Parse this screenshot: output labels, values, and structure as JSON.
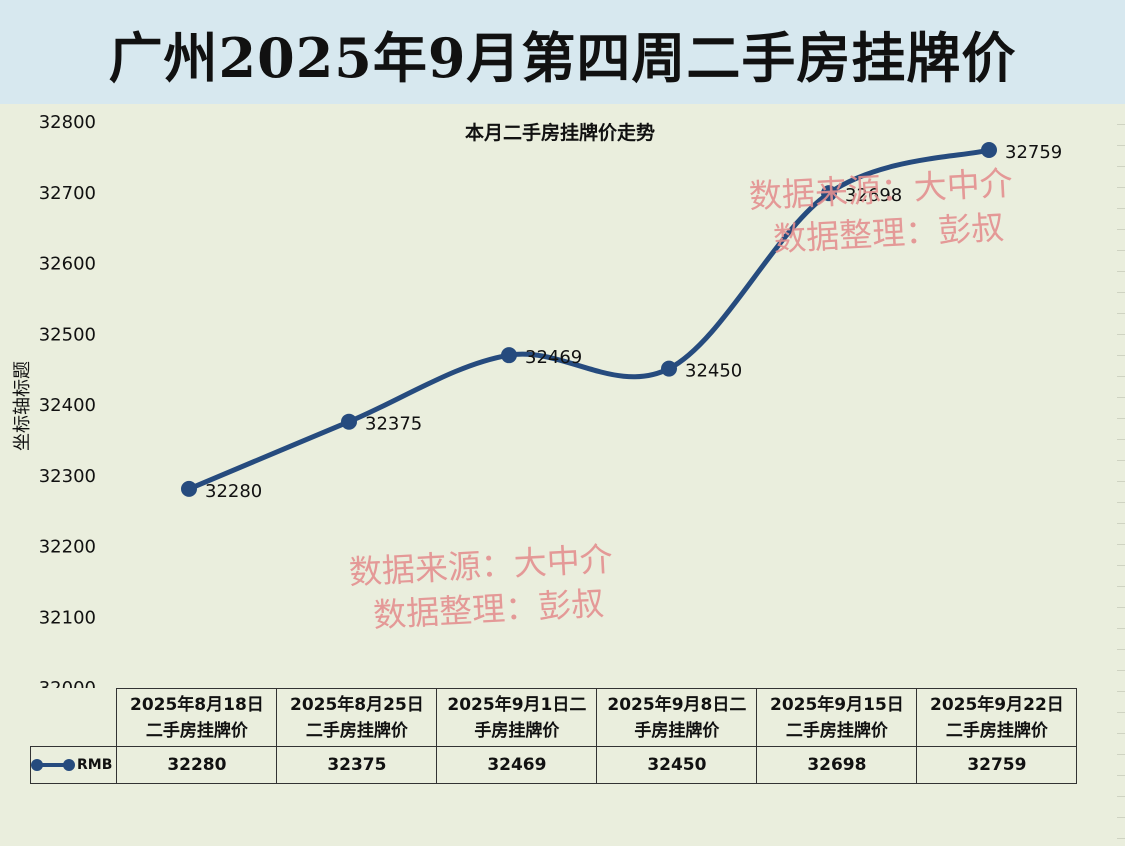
{
  "banner": {
    "title": "广州2025年9月第四周二手房挂牌价"
  },
  "watermark": {
    "line1": "数据来源：大中介",
    "line2": "数据整理：彭叔"
  },
  "chart_data": {
    "type": "line",
    "title": "本月二手房挂牌价走势",
    "ylabel": "坐标轴标题",
    "xlabel": "",
    "ylim": [
      32000,
      32800
    ],
    "yticks": [
      32000,
      32100,
      32200,
      32300,
      32400,
      32500,
      32600,
      32700,
      32800
    ],
    "categories": [
      "2025年8月18日二手房挂牌价",
      "2025年8月25日二手房挂牌价",
      "2025年9月1日二手房挂牌价",
      "2025年9月8日二手房挂牌价",
      "2025年9月15日二手房挂牌价",
      "2025年9月22日二手房挂牌价"
    ],
    "category_lines": [
      [
        "2025年8月18日",
        "二手房挂牌价"
      ],
      [
        "2025年8月25日",
        "二手房挂牌价"
      ],
      [
        "2025年9月1日二",
        "手房挂牌价"
      ],
      [
        "2025年9月8日二",
        "手房挂牌价"
      ],
      [
        "2025年9月15日",
        "二手房挂牌价"
      ],
      [
        "2025年9月22日",
        "二手房挂牌价"
      ]
    ],
    "series": [
      {
        "name": "RMB",
        "values": [
          32280,
          32375,
          32469,
          32450,
          32698,
          32759
        ],
        "color": "#264b7e"
      }
    ],
    "data_labels": [
      "32280",
      "32375",
      "32469",
      "32450",
      "32698",
      "32759"
    ],
    "legend": "data-table",
    "grid": false
  }
}
